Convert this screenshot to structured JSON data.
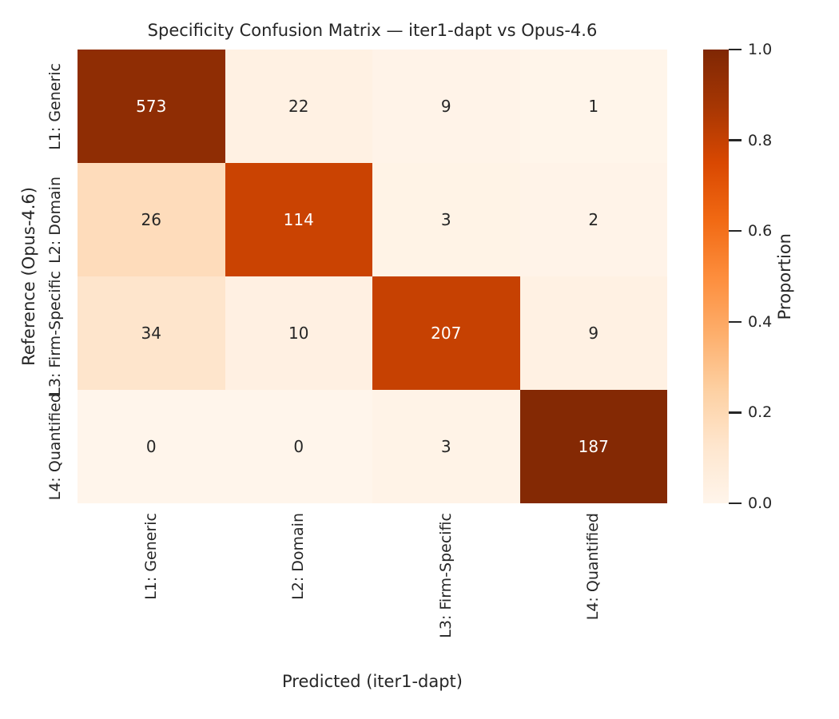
{
  "chart_data": {
    "type": "heatmap",
    "title": "Specificity Confusion Matrix — iter1-dapt vs Opus-4.6",
    "xlabel": "Predicted (iter1-dapt)",
    "ylabel": "Reference (Opus-4.6)",
    "x_tick_labels": [
      "L1: Generic",
      "L2: Domain",
      "L3: Firm-Specific",
      "L4: Quantified"
    ],
    "y_tick_labels": [
      "L1: Generic",
      "L2: Domain",
      "L3: Firm-Specific",
      "L4: Quantified"
    ],
    "values": [
      [
        573,
        22,
        9,
        1
      ],
      [
        26,
        114,
        3,
        2
      ],
      [
        34,
        10,
        207,
        9
      ],
      [
        0,
        0,
        3,
        187
      ]
    ],
    "row_proportions": [
      [
        0.947,
        0.036,
        0.015,
        0.002
      ],
      [
        0.179,
        0.786,
        0.021,
        0.014
      ],
      [
        0.131,
        0.038,
        0.796,
        0.035
      ],
      [
        0.0,
        0.0,
        0.016,
        0.984
      ]
    ],
    "cell_colors": [
      [
        "#8F2D04",
        "#FFF1E3",
        "#FFF3E8",
        "#FFF5EA"
      ],
      [
        "#FEDCBB",
        "#CA4302",
        "#FFF3E6",
        "#FFF3E8"
      ],
      [
        "#FEE5CC",
        "#FFF0E2",
        "#C64102",
        "#FFF1E3"
      ],
      [
        "#FFF5EB",
        "#FFF5EB",
        "#FFF3E7",
        "#842904"
      ]
    ],
    "text_colors": [
      [
        "#FFFFFF",
        "#262626",
        "#262626",
        "#262626"
      ],
      [
        "#262626",
        "#FFFFFF",
        "#262626",
        "#262626"
      ],
      [
        "#262626",
        "#262626",
        "#FFFFFF",
        "#262626"
      ],
      [
        "#262626",
        "#262626",
        "#262626",
        "#FFFFFF"
      ]
    ],
    "colorbar": {
      "label": "Proportion",
      "tick_labels": [
        "1.0",
        "0.8",
        "0.6",
        "0.4",
        "0.2",
        "0.0"
      ],
      "tick_values": [
        1.0,
        0.8,
        0.6,
        0.4,
        0.2,
        0.0
      ],
      "min": 0.0,
      "max": 1.0,
      "colormap_name": "Oranges",
      "gradient_stops_top_to_bottom": [
        "#7F2704",
        "#A63603",
        "#D94801",
        "#F16913",
        "#FD8D3C",
        "#FDAE6B",
        "#FDD0A2",
        "#FEE6CE",
        "#FFF5EB"
      ]
    },
    "legend_position": "colorbar-right",
    "grid": false,
    "text_color": "#262626",
    "background_color": "#FFFFFF"
  }
}
